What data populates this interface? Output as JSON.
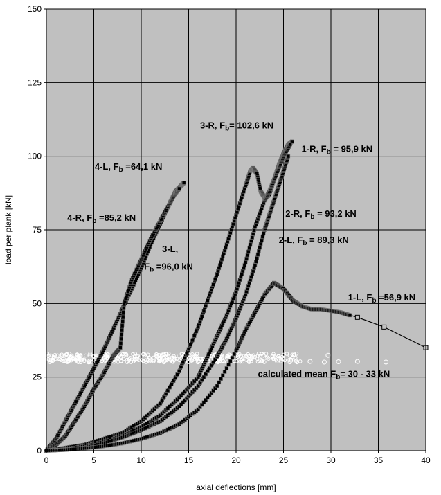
{
  "chart_data": {
    "type": "line",
    "xlabel": "axial deflections [mm]",
    "ylabel": "load per plank [kN]",
    "xlim": [
      0,
      40
    ],
    "ylim": [
      0,
      150
    ],
    "x_ticks": [
      "0",
      "5",
      "10",
      "15",
      "20",
      "25",
      "30",
      "35",
      "40"
    ],
    "y_ticks": [
      "0",
      "25",
      "50",
      "75",
      "100",
      "125",
      "150"
    ],
    "grid": true,
    "colors": {
      "plot_background": "#c0c0c0",
      "grid": "#000000",
      "series": "#000000"
    },
    "series": [
      {
        "x": [
          0,
          1,
          2,
          3,
          4,
          5,
          6,
          7,
          8,
          9,
          10,
          11,
          12,
          13,
          13.6,
          14.2,
          14.5
        ],
        "y": [
          0,
          4,
          10,
          16,
          22,
          28,
          34,
          41,
          48,
          55,
          62,
          70,
          77,
          84,
          88,
          90,
          91
        ]
      },
      {
        "x": [
          0,
          1,
          2,
          3,
          4,
          5,
          6,
          7,
          7.8,
          8.2,
          9,
          10,
          11,
          12,
          13,
          13.5,
          14
        ],
        "y": [
          0,
          2,
          5,
          10,
          15,
          21,
          26,
          32,
          35,
          50,
          58,
          65,
          72,
          78,
          84,
          87,
          89
        ]
      },
      {
        "x": [
          0,
          2,
          4,
          6,
          8,
          10,
          12,
          14,
          16,
          18,
          19,
          20,
          21,
          21.5,
          21.8,
          22.2,
          22.6,
          23,
          23.2,
          23.5,
          24,
          24.5,
          25,
          25.5,
          25.9
        ],
        "y": [
          0,
          1,
          2,
          4,
          6,
          10,
          16,
          27,
          42,
          60,
          70,
          80,
          90,
          95,
          96,
          94,
          88,
          86,
          86,
          87,
          92,
          97,
          101,
          104,
          105
        ]
      },
      {
        "x": [
          0,
          2,
          4,
          6,
          8,
          10,
          12,
          14,
          16,
          17,
          18,
          19,
          20,
          21,
          22,
          23,
          23.5,
          24,
          24.5,
          25,
          25.7
        ],
        "y": [
          0,
          0.5,
          1.5,
          3,
          5,
          8,
          12,
          18,
          25,
          32,
          39,
          46,
          54,
          64,
          76,
          85,
          88,
          92,
          96,
          100,
          104
        ]
      },
      {
        "x": [
          0,
          2,
          4,
          6,
          8,
          10,
          12,
          14,
          16,
          18,
          19,
          20,
          21,
          22,
          23,
          23.5,
          24,
          24.5,
          25,
          25.5
        ],
        "y": [
          0,
          0.3,
          1,
          2.5,
          4.5,
          7,
          10,
          15,
          22,
          32,
          38,
          45,
          53,
          63,
          75,
          80,
          85,
          90,
          95,
          100
        ]
      },
      {
        "x": [
          0,
          2,
          4,
          6,
          8,
          10,
          12,
          14,
          16,
          18,
          20,
          21,
          22,
          23,
          24,
          25,
          26,
          27,
          28,
          29,
          30,
          31,
          32,
          32.8,
          35.6,
          40
        ],
        "y": [
          0,
          0.3,
          0.8,
          1.5,
          2.5,
          4,
          6,
          9,
          14,
          22,
          34,
          41,
          47,
          53,
          57,
          55,
          51,
          49,
          48,
          48,
          47.5,
          47,
          46,
          45.3,
          42,
          35
        ]
      }
    ],
    "mean_band": {
      "x_range": [
        0,
        27
      ],
      "y_range": [
        30,
        33
      ]
    },
    "annotations": [
      {
        "main": "4-L, F",
        "sub": "b",
        "rest": " =64,1 kN",
        "x": 5.1,
        "y": 95.5
      },
      {
        "main": "4-R, F",
        "sub": "b",
        "rest": " =85,2 kN",
        "x": 2.2,
        "y": 78
      },
      {
        "main": "3-R, F",
        "sub": "b",
        "rest": "= 102,6 kN",
        "x": 16.2,
        "y": 109.5
      },
      {
        "main": "1-R, F",
        "sub": "b",
        "rest": " = 95,9 kN",
        "x": 26.9,
        "y": 101.5
      },
      {
        "main": "2-R, F",
        "sub": "b",
        "rest": " = 93,2 kN",
        "x": 25.2,
        "y": 79.5
      },
      {
        "main": "2-L, F",
        "sub": "b",
        "rest": " = 89,3 kN",
        "x": 24.5,
        "y": 70.5
      },
      {
        "main": "3-L,",
        "sub": "",
        "rest": "",
        "x": 12.2,
        "y": 67.5
      },
      {
        "main": "F",
        "sub": "b",
        "rest": " =96,0 kN",
        "x": 10.3,
        "y": 61.5
      },
      {
        "main": "1-L, F",
        "sub": "b",
        "rest": " =56,9 kN",
        "x": 31.8,
        "y": 51
      },
      {
        "main": "calculated mean F",
        "sub": "b",
        "rest": "= 30 - 33 kN",
        "x": 22.3,
        "y": 25
      }
    ]
  }
}
